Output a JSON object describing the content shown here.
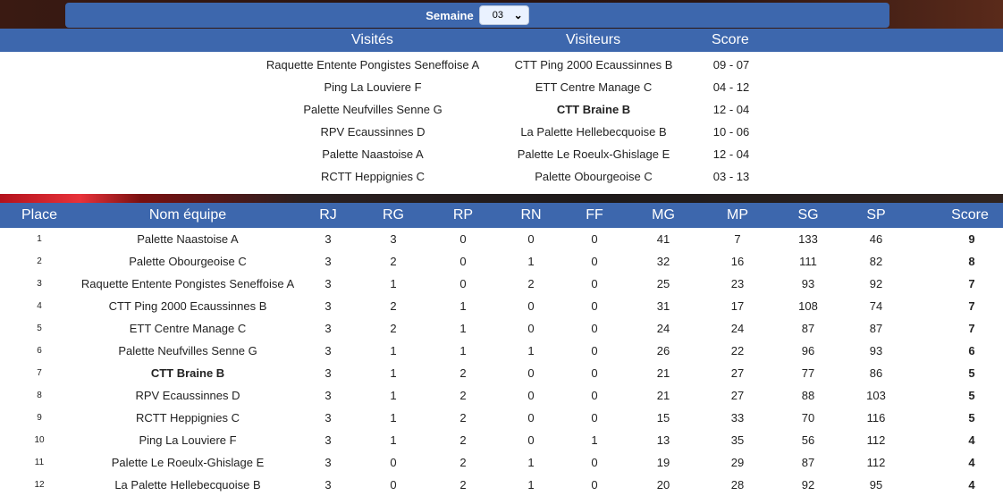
{
  "week": {
    "label": "Semaine",
    "selected": "03"
  },
  "matches": {
    "headers": {
      "home": "Visités",
      "away": "Visiteurs",
      "score": "Score"
    },
    "rows": [
      {
        "home": "Raquette Entente Pongistes Seneffoise A",
        "away": "CTT Ping 2000 Ecaussinnes B",
        "score": "09 - 07"
      },
      {
        "home": "Ping La Louviere F",
        "away": "ETT Centre Manage C",
        "score": "04 - 12"
      },
      {
        "home": "Palette Neufvilles Senne G",
        "away": "CTT Braine B",
        "score": "12 - 04",
        "away_bold": true
      },
      {
        "home": "RPV Ecaussinnes D",
        "away": "La Palette Hellebecquoise B",
        "score": "10 - 06"
      },
      {
        "home": "Palette Naastoise A",
        "away": "Palette Le Roeulx-Ghislage E",
        "score": "12 - 04"
      },
      {
        "home": "RCTT Heppignies C",
        "away": "Palette Obourgeoise C",
        "score": "03 - 13"
      }
    ]
  },
  "ranking": {
    "headers": {
      "place": "Place",
      "team": "Nom équipe",
      "rj": "RJ",
      "rg": "RG",
      "rp": "RP",
      "rn": "RN",
      "ff": "FF",
      "mg": "MG",
      "mp": "MP",
      "sg": "SG",
      "sp": "SP",
      "score": "Score"
    },
    "rows": [
      {
        "place": "1",
        "team": "Palette Naastoise A",
        "rj": "3",
        "rg": "3",
        "rp": "0",
        "rn": "0",
        "ff": "0",
        "mg": "41",
        "mp": "7",
        "sg": "133",
        "sp": "46",
        "score": "9"
      },
      {
        "place": "2",
        "team": "Palette Obourgeoise C",
        "rj": "3",
        "rg": "2",
        "rp": "0",
        "rn": "1",
        "ff": "0",
        "mg": "32",
        "mp": "16",
        "sg": "111",
        "sp": "82",
        "score": "8"
      },
      {
        "place": "3",
        "team": "Raquette Entente Pongistes Seneffoise A",
        "rj": "3",
        "rg": "1",
        "rp": "0",
        "rn": "2",
        "ff": "0",
        "mg": "25",
        "mp": "23",
        "sg": "93",
        "sp": "92",
        "score": "7"
      },
      {
        "place": "4",
        "team": "CTT Ping 2000 Ecaussinnes B",
        "rj": "3",
        "rg": "2",
        "rp": "1",
        "rn": "0",
        "ff": "0",
        "mg": "31",
        "mp": "17",
        "sg": "108",
        "sp": "74",
        "score": "7"
      },
      {
        "place": "5",
        "team": "ETT Centre Manage C",
        "rj": "3",
        "rg": "2",
        "rp": "1",
        "rn": "0",
        "ff": "0",
        "mg": "24",
        "mp": "24",
        "sg": "87",
        "sp": "87",
        "score": "7"
      },
      {
        "place": "6",
        "team": "Palette Neufvilles Senne G",
        "rj": "3",
        "rg": "1",
        "rp": "1",
        "rn": "1",
        "ff": "0",
        "mg": "26",
        "mp": "22",
        "sg": "96",
        "sp": "93",
        "score": "6"
      },
      {
        "place": "7",
        "team": "CTT Braine B",
        "rj": "3",
        "rg": "1",
        "rp": "2",
        "rn": "0",
        "ff": "0",
        "mg": "21",
        "mp": "27",
        "sg": "77",
        "sp": "86",
        "score": "5",
        "bold": true
      },
      {
        "place": "8",
        "team": "RPV Ecaussinnes D",
        "rj": "3",
        "rg": "1",
        "rp": "2",
        "rn": "0",
        "ff": "0",
        "mg": "21",
        "mp": "27",
        "sg": "88",
        "sp": "103",
        "score": "5"
      },
      {
        "place": "9",
        "team": "RCTT Heppignies C",
        "rj": "3",
        "rg": "1",
        "rp": "2",
        "rn": "0",
        "ff": "0",
        "mg": "15",
        "mp": "33",
        "sg": "70",
        "sp": "116",
        "score": "5"
      },
      {
        "place": "10",
        "team": "Ping La Louviere F",
        "rj": "3",
        "rg": "1",
        "rp": "2",
        "rn": "0",
        "ff": "1",
        "mg": "13",
        "mp": "35",
        "sg": "56",
        "sp": "112",
        "score": "4"
      },
      {
        "place": "11",
        "team": "Palette Le Roeulx-Ghislage E",
        "rj": "3",
        "rg": "0",
        "rp": "2",
        "rn": "1",
        "ff": "0",
        "mg": "19",
        "mp": "29",
        "sg": "87",
        "sp": "112",
        "score": "4"
      },
      {
        "place": "12",
        "team": "La Palette Hellebecquoise B",
        "rj": "3",
        "rg": "0",
        "rp": "2",
        "rn": "1",
        "ff": "0",
        "mg": "20",
        "mp": "28",
        "sg": "92",
        "sp": "95",
        "score": "4"
      }
    ]
  }
}
